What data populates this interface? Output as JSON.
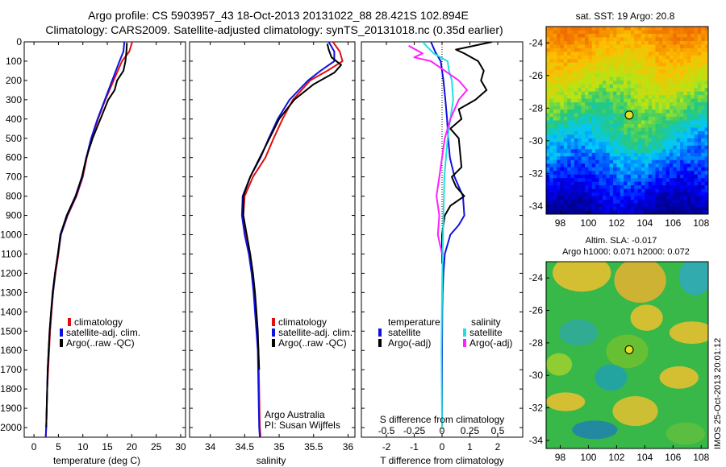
{
  "figure": {
    "title_line1": "Argo profile: CS 5903957_43 18-Oct-2013 20131022_88 28.421S 102.894E",
    "title_line2": "Climatology: CARS2009. Satellite-adjusted climatology: synTS_20131018.nc (0.35d earlier)",
    "side_stamp": "IMOS 25-Oct-2013 20:01:12",
    "argo_note_line1": "Argo Australia",
    "argo_note_line2": "PI: Susan Wijffels"
  },
  "colors": {
    "climatology": "#e01010",
    "satellite": "#1010e0",
    "argo": "#000000",
    "satellite_sal": "#20e0e0",
    "argo_sal": "#ff20ff",
    "marker": "#e0e020"
  },
  "chart_data": [
    {
      "type": "line",
      "id": "temperature",
      "xlabel": "temperature (deg C)",
      "ylabel": "",
      "xlim": [
        -2,
        31
      ],
      "ylim": [
        2050,
        0
      ],
      "xticks": [
        0,
        5,
        10,
        15,
        20,
        25,
        30
      ],
      "yticks": [
        0,
        100,
        200,
        300,
        400,
        500,
        600,
        700,
        800,
        900,
        1000,
        1100,
        1200,
        1300,
        1400,
        1500,
        1600,
        1700,
        1800,
        1900,
        2000
      ],
      "legend": [
        "climatology",
        "satellite-adj. clim.",
        "Argo(..raw -QC)"
      ],
      "legend_position": "lower-middle",
      "series": [
        {
          "name": "climatology",
          "color_key": "climatology",
          "x": [
            20.1,
            19.5,
            18.0,
            16.3,
            14.6,
            13.1,
            11.8,
            10.8,
            10.0,
            8.7,
            6.9,
            5.5,
            5.0,
            4.4,
            3.9,
            3.6,
            3.3,
            3.1,
            2.9,
            2.7,
            2.6,
            2.5,
            2.4
          ],
          "y": [
            0,
            50,
            100,
            200,
            300,
            400,
            500,
            600,
            700,
            800,
            900,
            1000,
            1100,
            1200,
            1300,
            1400,
            1500,
            1600,
            1700,
            1800,
            1900,
            2000,
            2050
          ]
        },
        {
          "name": "satellite-adj. clim.",
          "color_key": "satellite",
          "x": [
            18.5,
            18.3,
            17.5,
            16.0,
            14.5,
            13.0,
            11.7,
            10.7,
            9.9,
            8.6,
            6.8,
            5.5,
            4.9,
            4.3,
            3.9,
            3.5,
            3.2,
            3.0,
            2.8,
            2.7,
            2.6,
            2.5,
            2.4
          ],
          "y": [
            0,
            50,
            100,
            200,
            300,
            400,
            500,
            600,
            700,
            800,
            900,
            1000,
            1100,
            1200,
            1300,
            1400,
            1500,
            1600,
            1700,
            1800,
            1900,
            2000,
            2050
          ]
        },
        {
          "name": "Argo(..raw -QC)",
          "color_key": "argo",
          "x": [
            19.0,
            18.9,
            18.7,
            18.3,
            17.0,
            16.5,
            15.2,
            13.6,
            12.0,
            10.7,
            9.8,
            8.5,
            6.7,
            5.4,
            4.9,
            4.3,
            3.8,
            3.5,
            3.2,
            3.0,
            2.8,
            2.7,
            2.6,
            2.5
          ],
          "y": [
            5,
            50,
            100,
            150,
            200,
            250,
            300,
            400,
            500,
            600,
            700,
            800,
            900,
            1000,
            1100,
            1200,
            1300,
            1400,
            1500,
            1600,
            1700,
            1800,
            1900,
            2000
          ]
        }
      ]
    },
    {
      "type": "line",
      "id": "salinity",
      "xlabel": "salinity",
      "ylabel": "",
      "xlim": [
        33.7,
        36.1
      ],
      "ylim": [
        2050,
        0
      ],
      "xticks": [
        34,
        34.5,
        35,
        35.5,
        36
      ],
      "xticklabels": [
        "34",
        "34.5",
        "35",
        "35.5",
        "36"
      ],
      "legend": [
        "climatology",
        "satellite-adj. clim.",
        "Argo(..raw -QC)"
      ],
      "legend_position": "lower-right",
      "series": [
        {
          "name": "climatology",
          "color_key": "climatology",
          "x": [
            35.78,
            35.88,
            35.92,
            35.7,
            35.45,
            35.2,
            35.05,
            34.92,
            34.8,
            34.62,
            34.5,
            34.48,
            34.52,
            34.57,
            34.61,
            34.64,
            34.66,
            34.68,
            34.7,
            34.71,
            34.72,
            34.73
          ],
          "y": [
            0,
            50,
            100,
            150,
            200,
            300,
            400,
            500,
            600,
            700,
            800,
            900,
            1000,
            1100,
            1200,
            1300,
            1400,
            1500,
            1600,
            1800,
            2000,
            2050
          ]
        },
        {
          "name": "satellite-adj. clim.",
          "color_key": "satellite",
          "x": [
            35.72,
            35.8,
            35.8,
            35.6,
            35.42,
            35.15,
            34.98,
            34.85,
            34.73,
            34.58,
            34.47,
            34.46,
            34.5,
            34.56,
            34.6,
            34.63,
            34.65,
            34.67,
            34.69,
            34.7,
            34.71,
            34.72
          ],
          "y": [
            0,
            50,
            100,
            150,
            200,
            300,
            400,
            500,
            600,
            700,
            800,
            900,
            1000,
            1100,
            1200,
            1300,
            1400,
            1500,
            1600,
            1800,
            2000,
            2050
          ]
        },
        {
          "name": "Argo(..raw -QC)",
          "color_key": "argo",
          "x": [
            35.7,
            35.72,
            35.76,
            35.9,
            35.8,
            35.5,
            35.22,
            35.0,
            34.86,
            34.72,
            34.58,
            34.48,
            34.48,
            34.53,
            34.58,
            34.62,
            34.65,
            34.67,
            34.69,
            34.7,
            34.71
          ],
          "y": [
            10,
            40,
            80,
            120,
            160,
            220,
            300,
            400,
            500,
            600,
            700,
            800,
            900,
            1000,
            1100,
            1200,
            1300,
            1400,
            1500,
            1600,
            1700
          ]
        }
      ]
    },
    {
      "type": "line",
      "id": "difference",
      "xlabel": "T difference from climatology",
      "top_label": "S difference from climatology",
      "xlim": [
        -2.9,
        2.9
      ],
      "ylim": [
        2050,
        0
      ],
      "xticks": [
        -2,
        -1,
        0,
        1,
        2
      ],
      "xticklabels": [
        "-2",
        "-1",
        "0",
        "1",
        "2"
      ],
      "top_ticks": [
        -0.5,
        -0.25,
        0,
        0.25,
        0.5
      ],
      "top_ticklabels": [
        "-0.5",
        "-0.25",
        "0",
        "0.25",
        "0.5"
      ],
      "legend_groups": [
        {
          "title": "temperature",
          "entries": [
            "satellite",
            "Argo(-adj)"
          ]
        },
        {
          "title": "salinity",
          "entries": [
            "satellite",
            "Argo(-adj)"
          ]
        }
      ],
      "legend_position": "lower-middle",
      "series": [
        {
          "name": "temperature satellite",
          "color_key": "satellite",
          "x": [
            -0.4,
            -0.25,
            -0.05,
            0.0,
            0.05,
            0.12,
            0.18,
            0.22,
            0.28,
            0.45,
            0.75,
            0.8,
            0.6,
            0.3,
            0.1,
            0.05,
            0.02,
            0.01,
            0.0,
            0.0,
            0.0
          ],
          "y": [
            0,
            50,
            100,
            150,
            200,
            300,
            400,
            500,
            600,
            700,
            800,
            900,
            950,
            1000,
            1100,
            1200,
            1300,
            1400,
            1600,
            1800,
            2000
          ]
        },
        {
          "name": "temperature Argo(-adj)",
          "color_key": "argo",
          "x": [
            1.8,
            0.5,
            0.8,
            1.3,
            1.5,
            1.4,
            1.6,
            1.2,
            0.6,
            0.7,
            0.3,
            0.6,
            0.7,
            0.35,
            0.5,
            0.8,
            0.3,
            0.1,
            0.0,
            0.0
          ],
          "y": [
            0,
            40,
            60,
            100,
            150,
            200,
            250,
            300,
            350,
            400,
            450,
            500,
            650,
            700,
            750,
            800,
            850,
            900,
            1000,
            1150
          ]
        },
        {
          "name": "salinity satellite",
          "color_key": "satellite_sal",
          "x": [
            -0.7,
            -0.3,
            0.2,
            0.25,
            0.35,
            0.4,
            0.3,
            0.2,
            0.08,
            0.05,
            0.02,
            0.0,
            -0.02,
            0.0
          ],
          "y": [
            0,
            60,
            100,
            150,
            200,
            300,
            400,
            500,
            700,
            900,
            1100,
            1300,
            1600,
            2000
          ]
        },
        {
          "name": "salinity Argo(-adj)",
          "color_key": "argo_sal",
          "x": [
            -1.2,
            -0.7,
            -1.0,
            -0.4,
            0.1,
            0.6,
            0.9,
            0.6,
            0.3,
            0.1,
            0.0,
            -0.1,
            -0.2,
            -0.1,
            -0.15,
            0.0
          ],
          "y": [
            20,
            60,
            80,
            100,
            150,
            200,
            250,
            300,
            400,
            500,
            600,
            700,
            800,
            900,
            1000,
            1100
          ]
        }
      ]
    },
    {
      "type": "heatmap",
      "id": "sst_map",
      "title": "sat. SST: 19 Argo: 20.8",
      "xlim": [
        97,
        108.5
      ],
      "ylim": [
        -34.5,
        -23
      ],
      "xticks": [
        98,
        100,
        102,
        104,
        106,
        108
      ],
      "yticks": [
        -24,
        -26,
        -28,
        -30,
        -32,
        -34
      ],
      "marker": {
        "lon": 102.894,
        "lat": -28.421
      }
    },
    {
      "type": "heatmap",
      "id": "sla_map",
      "title_line1": "Altim. SLA: -0.017",
      "title_line2": "Argo h1000: 0.071 h2000: 0.072",
      "xlim": [
        97,
        108.5
      ],
      "ylim": [
        -34.5,
        -23
      ],
      "xticks": [
        98,
        100,
        102,
        104,
        106,
        108
      ],
      "yticks": [
        -24,
        -26,
        -28,
        -30,
        -32,
        -34
      ],
      "marker": {
        "lon": 102.894,
        "lat": -28.421
      }
    }
  ]
}
